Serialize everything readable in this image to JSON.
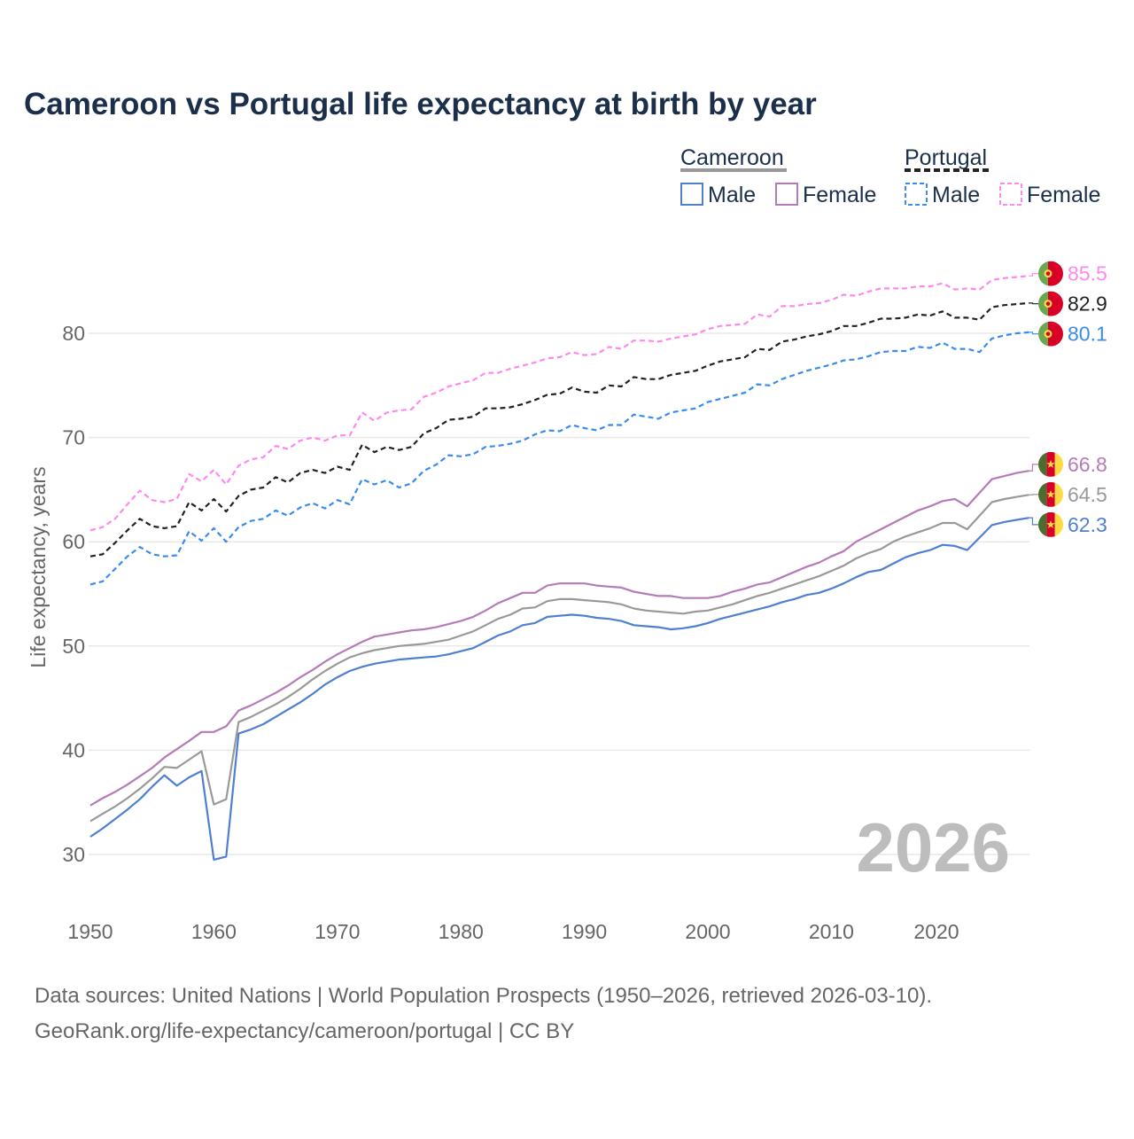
{
  "chart_data": {
    "type": "line",
    "title": "Cameroon vs Portugal life expectancy at birth by year",
    "ylabel": "Life expectancy, years",
    "xlabel": "",
    "x_start": 1950,
    "x_end": 2026,
    "xticks": [
      1950,
      1960,
      1970,
      1980,
      1990,
      2000,
      2010,
      2020
    ],
    "yticks": [
      30,
      40,
      50,
      60,
      70,
      80
    ],
    "ylim": [
      27,
      88
    ],
    "grid": true,
    "year_watermark": "2026",
    "legend": {
      "placement": "top-right",
      "groups": [
        {
          "country": "Cameroon",
          "style": "solid",
          "items": [
            "Male",
            "Female"
          ]
        },
        {
          "country": "Portugal",
          "style": "dashed",
          "items": [
            "Male",
            "Female"
          ]
        }
      ]
    },
    "series": [
      {
        "name": "Portugal Female",
        "country": "Portugal",
        "flag": "portugal",
        "color": "#ff88ee",
        "dashed": true,
        "end_label": "85.5",
        "values": [
          61.1,
          61.4,
          62.2,
          63.6,
          64.9,
          64.0,
          63.8,
          64.1,
          66.5,
          65.8,
          66.9,
          65.5,
          67.3,
          67.9,
          68.1,
          69.2,
          68.9,
          69.7,
          70.0,
          69.7,
          70.2,
          70.2,
          72.4,
          71.6,
          72.4,
          72.6,
          72.7,
          73.9,
          74.3,
          74.9,
          75.2,
          75.5,
          76.2,
          76.2,
          76.6,
          76.9,
          77.2,
          77.6,
          77.7,
          78.2,
          77.9,
          78.0,
          78.7,
          78.5,
          79.3,
          79.3,
          79.2,
          79.5,
          79.7,
          79.9,
          80.4,
          80.7,
          80.8,
          80.9,
          81.8,
          81.6,
          82.6,
          82.6,
          82.8,
          82.9,
          83.2,
          83.7,
          83.6,
          84.0,
          84.3,
          84.3,
          84.3,
          84.5,
          84.5,
          84.8,
          84.2,
          84.3,
          84.2,
          85.1,
          85.3,
          85.4,
          85.5
        ]
      },
      {
        "name": "Portugal Total",
        "country": "Portugal",
        "flag": "portugal",
        "color": "#222222",
        "dashed": true,
        "end_label": "82.9",
        "values": [
          58.6,
          58.8,
          59.9,
          61.1,
          62.2,
          61.5,
          61.3,
          61.5,
          63.8,
          63.0,
          64.1,
          62.9,
          64.4,
          65.0,
          65.2,
          66.2,
          65.7,
          66.6,
          66.9,
          66.6,
          67.2,
          66.9,
          69.3,
          68.6,
          69.1,
          68.8,
          69.1,
          70.4,
          70.9,
          71.7,
          71.8,
          72.0,
          72.8,
          72.8,
          72.9,
          73.2,
          73.6,
          74.1,
          74.2,
          74.8,
          74.4,
          74.3,
          75.0,
          74.9,
          75.8,
          75.6,
          75.6,
          76.0,
          76.2,
          76.4,
          76.9,
          77.3,
          77.5,
          77.7,
          78.5,
          78.4,
          79.2,
          79.4,
          79.7,
          79.9,
          80.2,
          80.7,
          80.7,
          81.0,
          81.4,
          81.4,
          81.5,
          81.8,
          81.7,
          82.1,
          81.5,
          81.5,
          81.3,
          82.5,
          82.7,
          82.8,
          82.9
        ]
      },
      {
        "name": "Portugal Male",
        "country": "Portugal",
        "flag": "portugal",
        "color": "#3b8beb",
        "dashed": true,
        "end_label": "80.1",
        "values": [
          55.9,
          56.2,
          57.4,
          58.6,
          59.5,
          58.8,
          58.6,
          58.7,
          61.0,
          60.1,
          61.3,
          60.0,
          61.4,
          62.0,
          62.2,
          63.0,
          62.5,
          63.3,
          63.7,
          63.2,
          64.0,
          63.6,
          66.0,
          65.5,
          65.9,
          65.2,
          65.6,
          66.8,
          67.4,
          68.3,
          68.2,
          68.4,
          69.1,
          69.2,
          69.4,
          69.7,
          70.3,
          70.7,
          70.6,
          71.2,
          70.9,
          70.7,
          71.2,
          71.2,
          72.2,
          72.0,
          71.8,
          72.4,
          72.6,
          72.8,
          73.4,
          73.7,
          74.0,
          74.3,
          75.1,
          75.0,
          75.6,
          76.0,
          76.4,
          76.7,
          77.0,
          77.4,
          77.5,
          77.8,
          78.2,
          78.3,
          78.3,
          78.7,
          78.6,
          79.1,
          78.5,
          78.5,
          78.2,
          79.5,
          79.8,
          80.0,
          80.1
        ]
      },
      {
        "name": "Cameroon Female",
        "country": "Cameroon",
        "flag": "cameroon",
        "color": "#b57bb8",
        "dashed": false,
        "end_label": "66.8",
        "values": [
          34.7,
          35.4,
          36.0,
          36.7,
          37.5,
          38.3,
          39.3,
          40.1,
          40.9,
          41.75,
          41.75,
          42.3,
          43.8,
          44.3,
          44.9,
          45.5,
          46.2,
          47.0,
          47.7,
          48.5,
          49.2,
          49.8,
          50.4,
          50.9,
          51.1,
          51.3,
          51.5,
          51.6,
          51.8,
          52.1,
          52.4,
          52.8,
          53.4,
          54.1,
          54.6,
          55.1,
          55.1,
          55.8,
          56.0,
          56.0,
          56.0,
          55.8,
          55.7,
          55.6,
          55.2,
          55.0,
          54.8,
          54.8,
          54.6,
          54.6,
          54.6,
          54.8,
          55.2,
          55.5,
          55.9,
          56.1,
          56.6,
          57.1,
          57.6,
          58.0,
          58.6,
          59.1,
          60.0,
          60.6,
          61.2,
          61.8,
          62.4,
          63.0,
          63.4,
          63.9,
          64.1,
          63.4,
          64.7,
          66.0,
          66.3,
          66.6,
          66.8
        ]
      },
      {
        "name": "Cameroon Total",
        "country": "Cameroon",
        "flag": "cameroon",
        "color": "#999999",
        "dashed": false,
        "end_label": "64.5",
        "values": [
          33.2,
          33.9,
          34.6,
          35.4,
          36.3,
          37.3,
          38.4,
          38.3,
          39.1,
          39.9,
          34.8,
          35.3,
          42.7,
          43.2,
          43.8,
          44.4,
          45.1,
          45.9,
          46.8,
          47.6,
          48.3,
          48.9,
          49.3,
          49.6,
          49.8,
          50.0,
          50.1,
          50.2,
          50.4,
          50.6,
          51.0,
          51.4,
          52.0,
          52.6,
          53.0,
          53.6,
          53.7,
          54.3,
          54.5,
          54.5,
          54.4,
          54.3,
          54.2,
          54.0,
          53.6,
          53.4,
          53.3,
          53.2,
          53.1,
          53.3,
          53.4,
          53.7,
          54.0,
          54.4,
          54.8,
          55.1,
          55.5,
          55.9,
          56.3,
          56.7,
          57.2,
          57.7,
          58.4,
          58.9,
          59.3,
          60.0,
          60.5,
          60.9,
          61.3,
          61.8,
          61.8,
          61.2,
          62.5,
          63.8,
          64.1,
          64.3,
          64.5
        ]
      },
      {
        "name": "Cameroon Male",
        "country": "Cameroon",
        "flag": "cameroon",
        "color": "#4f7fcf",
        "dashed": false,
        "end_label": "62.3",
        "values": [
          31.7,
          32.5,
          33.4,
          34.3,
          35.3,
          36.5,
          37.6,
          36.6,
          37.4,
          38.0,
          29.5,
          29.8,
          41.6,
          42.0,
          42.5,
          43.2,
          43.9,
          44.6,
          45.4,
          46.3,
          47.0,
          47.6,
          48.0,
          48.3,
          48.5,
          48.7,
          48.8,
          48.9,
          49.0,
          49.2,
          49.5,
          49.8,
          50.4,
          51.0,
          51.4,
          52.0,
          52.2,
          52.8,
          52.9,
          53.0,
          52.9,
          52.7,
          52.6,
          52.4,
          52.0,
          51.9,
          51.8,
          51.6,
          51.7,
          51.9,
          52.2,
          52.6,
          52.9,
          53.2,
          53.5,
          53.8,
          54.2,
          54.5,
          54.9,
          55.1,
          55.5,
          56.0,
          56.6,
          57.1,
          57.3,
          57.9,
          58.5,
          58.9,
          59.2,
          59.7,
          59.6,
          59.2,
          60.4,
          61.6,
          61.9,
          62.1,
          62.3
        ]
      }
    ]
  },
  "footer": {
    "line1": "Data sources: United Nations | World Population Prospects (1950–2026, retrieved 2026-03-10).",
    "line2": "GeoRank.org/life-expectancy/cameroon/portugal | CC BY"
  },
  "colors": {
    "title": "#1b2f4b",
    "cameroon_group": "#999999",
    "portugal_group": "#222222"
  }
}
